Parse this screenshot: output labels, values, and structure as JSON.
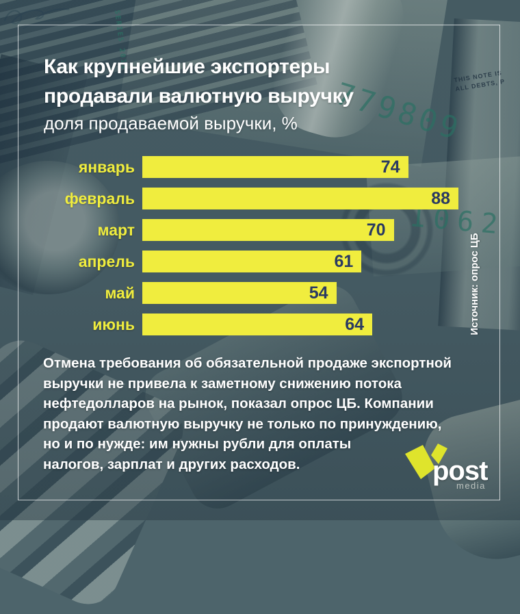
{
  "header": {
    "title_lines": [
      "Как крупнейшие экспортеры",
      "продавали валютную выручку"
    ],
    "subtitle": "доля продаваемой выручки, %"
  },
  "chart_data": {
    "type": "bar",
    "orientation": "horizontal",
    "title": "Как крупнейшие экспортеры продавали валютную выручку",
    "unit_label": "доля продаваемой выручки, %",
    "categories": [
      "январь",
      "февраль",
      "март",
      "апрель",
      "май",
      "июнь"
    ],
    "values": [
      74,
      88,
      70,
      61,
      54,
      64
    ],
    "xlim": [
      0,
      100
    ],
    "grid": false,
    "legend": "none",
    "value_labels_inside_bar": true,
    "bar_color": "#f0ed3e",
    "category_label_color": "#f0ed3e",
    "value_label_color": "#2a3a62"
  },
  "source": {
    "label": "Источник: опрос ЦБ"
  },
  "footnote": {
    "lines": [
      "Отмена требования об обязательной продаже экспортной",
      "выручки не привела к заметному снижению потока",
      "нефтедолларов на рынок, показал опрос ЦБ. Компании",
      "продают валютную выручку не только по принуждению,",
      "но и по нужде: им нужны рубли для оплаты",
      "налогов, зарплат и других расходов."
    ]
  },
  "logo": {
    "name": "post",
    "sub": "media",
    "mark_color": "#dfe42c"
  },
  "background_photo": {
    "serial_number": "779809",
    "digits_right": "1062",
    "series_label": "SERIES 2013",
    "note_line_1": "THIS NOTE IS",
    "note_line_2": "ALL DEBTS, P"
  }
}
